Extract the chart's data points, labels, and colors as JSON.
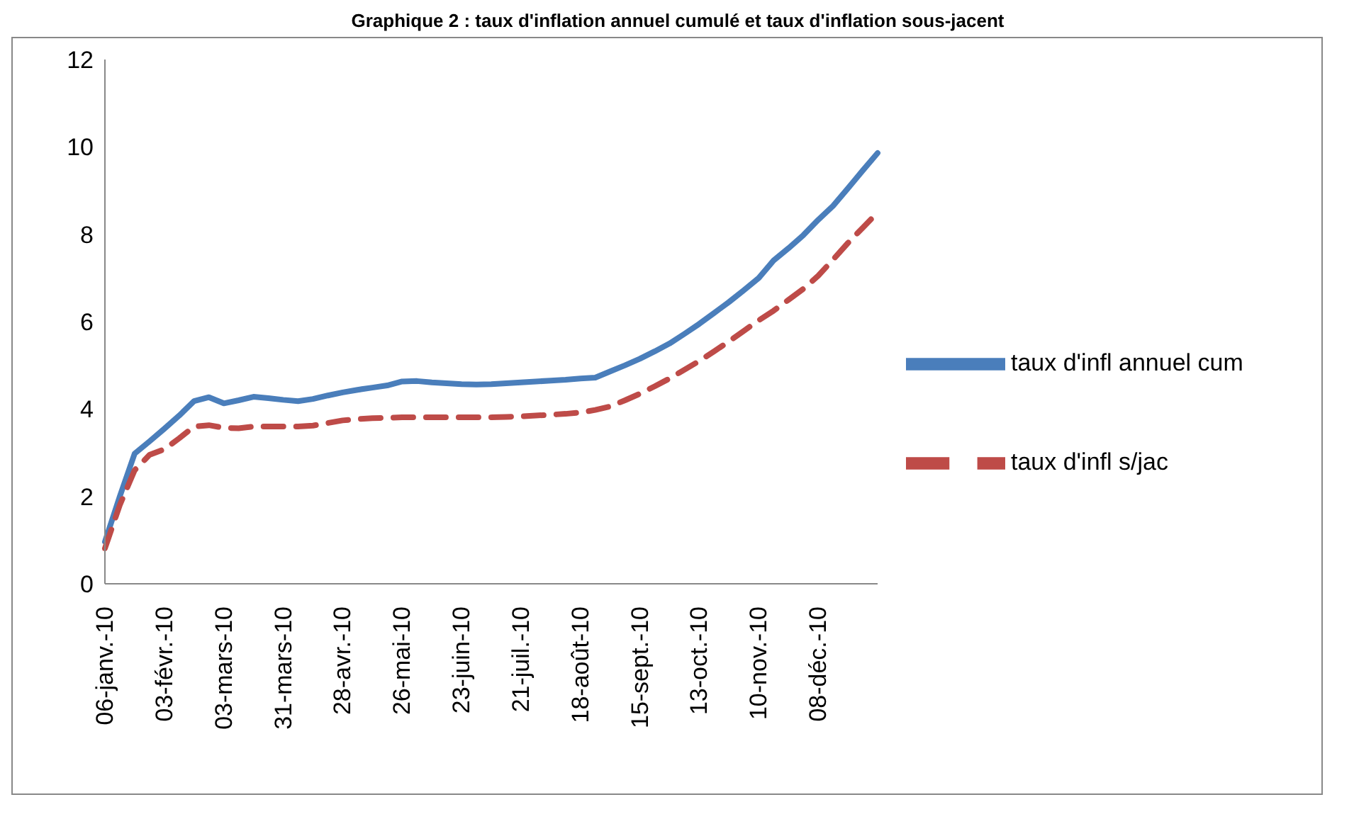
{
  "chart_data": {
    "type": "line",
    "title": "Graphique 2 : taux d'inflation annuel cumulé et taux d'inflation sous-jacent",
    "categories": [
      "06-janv.-10",
      null,
      null,
      null,
      "03-févr.-10",
      null,
      null,
      null,
      "03-mars-10",
      null,
      null,
      null,
      "31-mars-10",
      null,
      null,
      null,
      "28-avr.-10",
      null,
      null,
      null,
      "26-mai-10",
      null,
      null,
      null,
      "23-juin-10",
      null,
      null,
      null,
      "21-juil.-10",
      null,
      null,
      null,
      "18-août-10",
      null,
      null,
      null,
      "15-sept.-10",
      null,
      null,
      null,
      "13-oct.-10",
      null,
      null,
      null,
      "10-nov.-10",
      null,
      null,
      null,
      "08-déc.-10",
      null,
      null,
      null,
      null
    ],
    "series": [
      {
        "name": "taux d'infl annuel cum",
        "color": "#4a7ebb",
        "line_style": "solid",
        "values": [
          0.96,
          2.0,
          2.98,
          3.26,
          3.55,
          3.85,
          4.18,
          4.27,
          4.13,
          4.2,
          4.28,
          4.25,
          4.21,
          4.18,
          4.23,
          4.31,
          4.38,
          4.44,
          4.49,
          4.54,
          4.63,
          4.64,
          4.61,
          4.59,
          4.57,
          4.56,
          4.57,
          4.59,
          4.61,
          4.63,
          4.65,
          4.67,
          4.7,
          4.72,
          4.86,
          5.0,
          5.15,
          5.32,
          5.5,
          5.72,
          5.95,
          6.2,
          6.45,
          6.72,
          7.0,
          7.4,
          7.68,
          7.98,
          8.33,
          8.65,
          9.05,
          9.46,
          9.86
        ]
      },
      {
        "name": "taux d'infl s/jac",
        "color": "#be4b48",
        "line_style": "dashed",
        "values": [
          0.81,
          1.8,
          2.6,
          2.95,
          3.08,
          3.33,
          3.6,
          3.63,
          3.57,
          3.56,
          3.6,
          3.6,
          3.6,
          3.6,
          3.62,
          3.68,
          3.74,
          3.77,
          3.79,
          3.8,
          3.81,
          3.81,
          3.81,
          3.81,
          3.81,
          3.81,
          3.81,
          3.82,
          3.83,
          3.85,
          3.87,
          3.89,
          3.92,
          3.98,
          4.06,
          4.2,
          4.35,
          4.52,
          4.7,
          4.9,
          5.1,
          5.32,
          5.55,
          5.79,
          6.03,
          6.25,
          6.5,
          6.75,
          7.05,
          7.42,
          7.8,
          8.15,
          8.5
        ]
      }
    ],
    "ylim": [
      0,
      12
    ],
    "yticks": [
      0,
      2,
      4,
      6,
      8,
      10,
      12
    ],
    "grid": false,
    "legend": "right",
    "marker": "none"
  }
}
